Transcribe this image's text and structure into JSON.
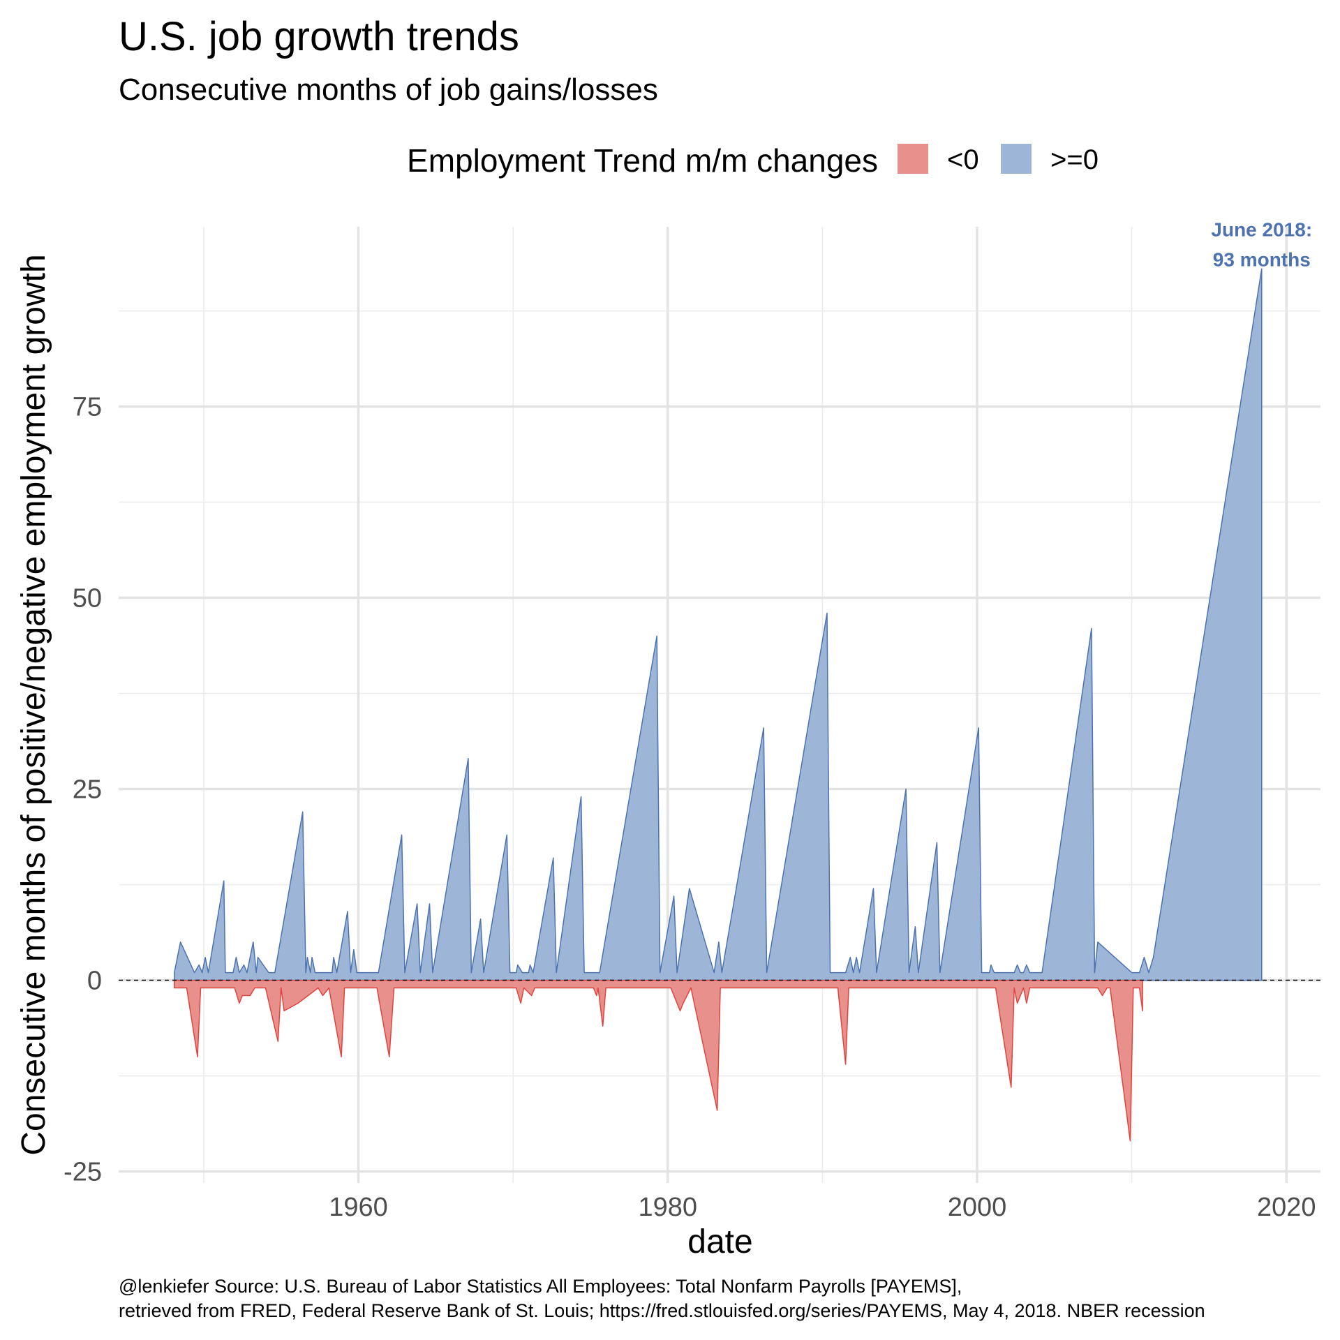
{
  "chart_data": {
    "type": "area",
    "title": "U.S. job growth trends",
    "subtitle": "Consecutive months of job gains/losses",
    "xlabel": "date",
    "ylabel": "Consecutive months of positive/negative employment growth",
    "xlim": [
      1944.5,
      2022.2
    ],
    "ylim": [
      -26.5,
      98.5
    ],
    "x_ticks": [
      1960,
      1980,
      2000,
      2020
    ],
    "y_ticks": [
      -25,
      0,
      25,
      50,
      75
    ],
    "grid": true,
    "legend": {
      "title": "Employment Trend m/m changes",
      "position": "top",
      "items": [
        {
          "label": "<0",
          "color": "#E8908C"
        },
        {
          "label": ">=0",
          "color": "#9DB6D8"
        }
      ]
    },
    "reference_line": {
      "y": 0,
      "style": "dashed"
    },
    "series": [
      {
        "name": ">=0",
        "color": "#9DB6D8",
        "line_color": "#4C72B0",
        "points": [
          [
            1948.1,
            1
          ],
          [
            1948.5,
            5
          ],
          [
            1949.4,
            1
          ],
          [
            1949.7,
            2
          ],
          [
            1949.9,
            1
          ],
          [
            1950.1,
            3
          ],
          [
            1950.3,
            1
          ],
          [
            1951.3,
            13
          ],
          [
            1951.4,
            1
          ],
          [
            1951.9,
            1
          ],
          [
            1952.1,
            3
          ],
          [
            1952.3,
            1
          ],
          [
            1952.6,
            2
          ],
          [
            1952.8,
            1
          ],
          [
            1953.2,
            5
          ],
          [
            1953.4,
            1
          ],
          [
            1953.5,
            3
          ],
          [
            1954.2,
            1
          ],
          [
            1954.6,
            1
          ],
          [
            1956.4,
            22
          ],
          [
            1956.6,
            1
          ],
          [
            1956.7,
            3
          ],
          [
            1956.9,
            1
          ],
          [
            1957.0,
            3
          ],
          [
            1957.2,
            1
          ],
          [
            1958.3,
            1
          ],
          [
            1958.4,
            3
          ],
          [
            1958.6,
            1
          ],
          [
            1959.3,
            9
          ],
          [
            1959.5,
            1
          ],
          [
            1959.7,
            4
          ],
          [
            1959.9,
            1
          ],
          [
            1961.3,
            1
          ],
          [
            1962.8,
            19
          ],
          [
            1963.0,
            1
          ],
          [
            1963.8,
            10
          ],
          [
            1964.0,
            1
          ],
          [
            1964.6,
            10
          ],
          [
            1964.8,
            1
          ],
          [
            1967.1,
            29
          ],
          [
            1967.3,
            1
          ],
          [
            1967.9,
            8
          ],
          [
            1968.1,
            1
          ],
          [
            1969.6,
            19
          ],
          [
            1969.8,
            1
          ],
          [
            1970.2,
            1
          ],
          [
            1970.3,
            2
          ],
          [
            1970.6,
            1
          ],
          [
            1971.0,
            1
          ],
          [
            1971.1,
            2
          ],
          [
            1971.3,
            1
          ],
          [
            1972.6,
            16
          ],
          [
            1972.8,
            1
          ],
          [
            1974.4,
            24
          ],
          [
            1974.6,
            1
          ],
          [
            1975.6,
            1
          ],
          [
            1979.3,
            45
          ],
          [
            1979.5,
            1
          ],
          [
            1980.4,
            11
          ],
          [
            1980.6,
            1
          ],
          [
            1981.4,
            12
          ],
          [
            1983.0,
            1
          ],
          [
            1983.3,
            5
          ],
          [
            1983.5,
            1
          ],
          [
            1986.2,
            33
          ],
          [
            1986.4,
            1
          ],
          [
            1990.3,
            48
          ],
          [
            1990.5,
            1
          ],
          [
            1991.5,
            1
          ],
          [
            1991.8,
            3
          ],
          [
            1992.0,
            1
          ],
          [
            1992.2,
            3
          ],
          [
            1992.4,
            1
          ],
          [
            1993.3,
            12
          ],
          [
            1993.5,
            1
          ],
          [
            1995.4,
            25
          ],
          [
            1995.6,
            1
          ],
          [
            1996.0,
            7
          ],
          [
            1996.2,
            1
          ],
          [
            1997.4,
            18
          ],
          [
            1997.6,
            1
          ],
          [
            2000.1,
            33
          ],
          [
            2000.3,
            1
          ],
          [
            2000.8,
            1
          ],
          [
            2000.9,
            2
          ],
          [
            2001.1,
            1
          ],
          [
            2002.4,
            1
          ],
          [
            2002.6,
            2
          ],
          [
            2002.8,
            1
          ],
          [
            2003.0,
            1
          ],
          [
            2003.2,
            2
          ],
          [
            2003.4,
            1
          ],
          [
            2004.2,
            1
          ],
          [
            2007.4,
            46
          ],
          [
            2007.6,
            1
          ],
          [
            2007.8,
            5
          ],
          [
            2010.0,
            1
          ],
          [
            2010.5,
            1
          ],
          [
            2010.8,
            3
          ],
          [
            2011.1,
            1
          ],
          [
            2011.4,
            3
          ],
          [
            2018.4,
            93
          ]
        ]
      },
      {
        "name": "<0",
        "color": "#E8908C",
        "line_color": "#E0443E",
        "points": [
          [
            1948.1,
            -1
          ],
          [
            1948.9,
            -1
          ],
          [
            1949.6,
            -10
          ],
          [
            1949.8,
            -1
          ],
          [
            1952.0,
            -1
          ],
          [
            1952.3,
            -3
          ],
          [
            1952.5,
            -2
          ],
          [
            1953.0,
            -2
          ],
          [
            1953.3,
            -1
          ],
          [
            1954.0,
            -1
          ],
          [
            1954.8,
            -8
          ],
          [
            1955.0,
            -1
          ],
          [
            1955.2,
            -4
          ],
          [
            1956.1,
            -3
          ],
          [
            1957.4,
            -1
          ],
          [
            1957.7,
            -2
          ],
          [
            1958.1,
            -1
          ],
          [
            1958.9,
            -10
          ],
          [
            1959.1,
            -1
          ],
          [
            1961.2,
            -1
          ],
          [
            1962.0,
            -10
          ],
          [
            1962.3,
            -1
          ],
          [
            1970.2,
            -1
          ],
          [
            1970.5,
            -3
          ],
          [
            1970.7,
            -1
          ],
          [
            1971.2,
            -2
          ],
          [
            1971.4,
            -1
          ],
          [
            1975.2,
            -1
          ],
          [
            1975.4,
            -2
          ],
          [
            1975.5,
            -1
          ],
          [
            1975.8,
            -6
          ],
          [
            1976.0,
            -1
          ],
          [
            1980.2,
            -1
          ],
          [
            1980.8,
            -4
          ],
          [
            1981.0,
            -3
          ],
          [
            1981.5,
            -1
          ],
          [
            1983.2,
            -17
          ],
          [
            1983.4,
            -1
          ],
          [
            1991.0,
            -1
          ],
          [
            1991.5,
            -11
          ],
          [
            1991.7,
            -1
          ],
          [
            2001.2,
            -1
          ],
          [
            2002.2,
            -14
          ],
          [
            2002.4,
            -1
          ],
          [
            2002.6,
            -3
          ],
          [
            2002.8,
            -2
          ],
          [
            2003.0,
            -1
          ],
          [
            2003.2,
            -3
          ],
          [
            2003.4,
            -1
          ],
          [
            2007.8,
            -1
          ],
          [
            2008.1,
            -2
          ],
          [
            2008.4,
            -1
          ],
          [
            2008.6,
            -1
          ],
          [
            2009.9,
            -21
          ],
          [
            2010.1,
            -1
          ],
          [
            2010.5,
            -1
          ],
          [
            2010.7,
            -4
          ]
        ]
      }
    ],
    "annotation": {
      "x": 2018.4,
      "y": 93,
      "lines": [
        "June 2018:",
        "93 months"
      ],
      "color": "#4C72B0"
    },
    "caption": [
      "@lenkiefer Source: U.S. Bureau of Labor Statistics All Employees: Total Nonfarm Payrolls [PAYEMS],",
      "retrieved from FRED, Federal Reserve Bank of St. Louis; https://fred.stlouisfed.org/series/PAYEMS, May 4, 2018. NBER recession"
    ]
  }
}
